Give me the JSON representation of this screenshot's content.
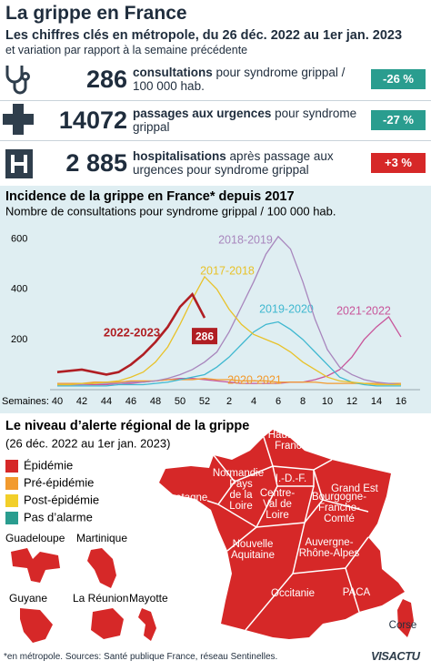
{
  "header": {
    "title": "La grippe en France",
    "subtitle": "Les chiffres clés en métropole, du 26 déc. 2022 au 1er jan. 2023",
    "note": "et variation par rapport à la semaine précédente"
  },
  "key_figures": [
    {
      "value": "286",
      "label_bold": "consultations",
      "label": "pour syndrome grippal / 100 000 hab.",
      "change": "-26 %",
      "color": "#2a9d8f"
    },
    {
      "value": "14072",
      "label_bold": "passages aux urgences",
      "label": "pour syndrome grippal",
      "change": "-27 %",
      "color": "#2a9d8f"
    },
    {
      "value": "2 885",
      "label_bold": "hospitalisations",
      "label": "après passage aux urgences pour syndrome grippal",
      "change": "+3 %",
      "color": "#d62828"
    }
  ],
  "chart_data": {
    "type": "line",
    "title": "Incidence de la grippe en France* depuis 2017",
    "subtitle": "Nombre de consultations pour syndrome grippal / 100 000 hab.",
    "x_label": "Semaines:",
    "categories": [
      "40",
      null,
      "42",
      null,
      "44",
      null,
      "46",
      null,
      "48",
      null,
      "50",
      null,
      "52",
      null,
      "2",
      null,
      "4",
      null,
      "6",
      null,
      "8",
      null,
      "10",
      null,
      "12",
      null,
      "14",
      null,
      "16"
    ],
    "series": [
      {
        "name": "2022-2023",
        "color": "#b01e23",
        "values": [
          70,
          75,
          80,
          70,
          60,
          70,
          100,
          140,
          190,
          250,
          330,
          380,
          286,
          null,
          null,
          null,
          null,
          null,
          null,
          null,
          null,
          null,
          null,
          null,
          null,
          null,
          null,
          null,
          null
        ]
      },
      {
        "name": "2017-2018",
        "color": "#e8c22a",
        "values": [
          20,
          20,
          25,
          25,
          30,
          35,
          50,
          70,
          110,
          170,
          260,
          360,
          450,
          400,
          320,
          260,
          220,
          200,
          180,
          150,
          110,
          80,
          50,
          35,
          30,
          25,
          20,
          20,
          20
        ]
      },
      {
        "name": "2018-2019",
        "color": "#a886bd",
        "values": [
          20,
          20,
          20,
          25,
          25,
          25,
          30,
          30,
          35,
          45,
          60,
          80,
          110,
          150,
          230,
          330,
          430,
          540,
          610,
          560,
          430,
          280,
          160,
          90,
          60,
          40,
          30,
          25,
          20
        ]
      },
      {
        "name": "2019-2020",
        "color": "#3fb8d0",
        "values": [
          15,
          15,
          15,
          15,
          15,
          20,
          20,
          20,
          25,
          30,
          40,
          50,
          60,
          90,
          130,
          180,
          230,
          260,
          270,
          240,
          200,
          150,
          100,
          50,
          30,
          20,
          15,
          15,
          15
        ]
      },
      {
        "name": "2020-2021",
        "color": "#f29a2e",
        "values": [
          25,
          25,
          25,
          30,
          30,
          30,
          35,
          35,
          35,
          40,
          40,
          40,
          45,
          40,
          40,
          35,
          35,
          35,
          30,
          30,
          30,
          30,
          25,
          25,
          25,
          25,
          25,
          25,
          25
        ]
      },
      {
        "name": "2021-2022",
        "color": "#c8559a",
        "values": [
          20,
          20,
          20,
          20,
          20,
          25,
          25,
          30,
          35,
          40,
          45,
          45,
          40,
          35,
          30,
          25,
          25,
          25,
          25,
          30,
          30,
          40,
          55,
          80,
          130,
          200,
          250,
          290,
          210
        ]
      }
    ],
    "ylim": [
      0,
      660
    ],
    "yticks": [
      200,
      400,
      600
    ],
    "grid": false
  },
  "map": {
    "title": "Le niveau d’alerte régional de la grippe",
    "subtitle": "(26 déc. 2022 au 1er jan. 2023)",
    "legend": [
      {
        "label": "Épidémie",
        "color": "#d62828"
      },
      {
        "label": "Pré-épidémie",
        "color": "#f29a2e"
      },
      {
        "label": "Post-épidémie",
        "color": "#f2cf2a"
      },
      {
        "label": "Pas d’alarme",
        "color": "#2a9d8f"
      }
    ],
    "overseas": [
      "Guadeloupe",
      "Martinique",
      "Guyane",
      "La Réunion",
      "Mayotte"
    ],
    "regions": [
      {
        "lines": [
          "Hauts-de-",
          "France"
        ]
      },
      {
        "lines": [
          "Normandie"
        ]
      },
      {
        "lines": [
          "I.-D.-F."
        ]
      },
      {
        "lines": [
          "Grand Est"
        ]
      },
      {
        "lines": [
          "Bretagne"
        ]
      },
      {
        "lines": [
          "Pays",
          "de la",
          "Loire"
        ]
      },
      {
        "lines": [
          "Centre-",
          "Val de",
          "Loire"
        ]
      },
      {
        "lines": [
          "Bourgogne-",
          "Franche-",
          "Comté"
        ]
      },
      {
        "lines": [
          "Nouvelle",
          "Aquitaine"
        ]
      },
      {
        "lines": [
          "Auvergne-",
          "Rhône-Alpes"
        ]
      },
      {
        "lines": [
          "Occitanie"
        ]
      },
      {
        "lines": [
          "PACA"
        ]
      },
      {
        "lines": [
          "Corse"
        ]
      }
    ]
  },
  "footer": {
    "note": "*en métropole. Sources: Santé publique France, réseau Sentinelles.",
    "logo": "VISACTU"
  }
}
